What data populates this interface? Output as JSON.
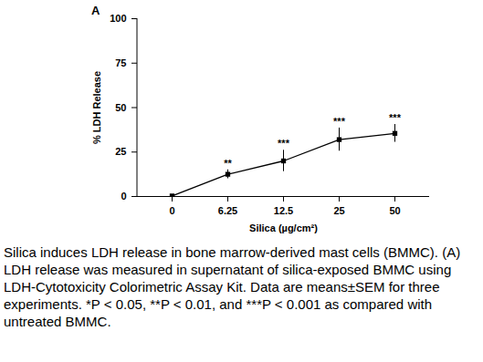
{
  "chart_data": {
    "type": "line",
    "title": "A",
    "x_label": "Silica (µg/cm²)",
    "y_label": "% LDH Release",
    "categories": [
      "0",
      "6.25",
      "12.5",
      "25",
      "50"
    ],
    "values": [
      0.3,
      12.5,
      20,
      32,
      35.5
    ],
    "errors": [
      0.5,
      2.5,
      6,
      6.5,
      5
    ],
    "annotations": [
      null,
      "**",
      "***",
      "***",
      "***"
    ],
    "color": "#000000",
    "marker": "square",
    "line_style": "solid",
    "ylim": [
      0,
      100
    ],
    "yticks": [
      0,
      25,
      50,
      75,
      100
    ],
    "grid": false,
    "caption": "Silica induces LDH release in bone marrow-derived mast cells (BMMC). (A) LDH release was measured in supernatant of silica-exposed BMMC using LDH-Cytotoxicity Colorimetric Assay Kit. Data are means±SEM for three experiments. *P < 0.05, **P < 0.01, and ***P < 0.001 as compared with untreated BMMC."
  }
}
